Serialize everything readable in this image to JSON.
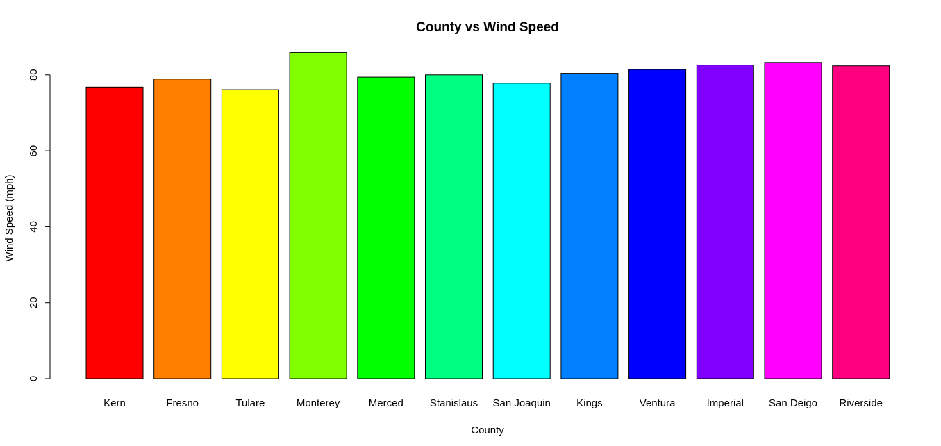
{
  "chart_data": {
    "type": "bar",
    "title": "County vs Wind Speed",
    "xlabel": "County",
    "ylabel": "Wind Speed (mph)",
    "categories": [
      "Kern",
      "Fresno",
      "Tulare",
      "Monterey",
      "Merced",
      "Stanislaus",
      "San Joaquin",
      "Kings",
      "Ventura",
      "Imperial",
      "San Deigo",
      "Riverside"
    ],
    "values": [
      76.8,
      78.9,
      76.1,
      85.9,
      79.4,
      80.0,
      77.8,
      80.4,
      81.4,
      82.6,
      83.3,
      82.4
    ],
    "colors": [
      "#FF0000",
      "#FF8000",
      "#FFFF00",
      "#80FF00",
      "#00FF00",
      "#00FF80",
      "#00FFFF",
      "#0080FF",
      "#0000FF",
      "#8000FF",
      "#FF00FF",
      "#FF0080"
    ],
    "ylim": [
      0,
      85.9
    ],
    "yticks": [
      0,
      20,
      40,
      60,
      80
    ],
    "grid": false
  }
}
